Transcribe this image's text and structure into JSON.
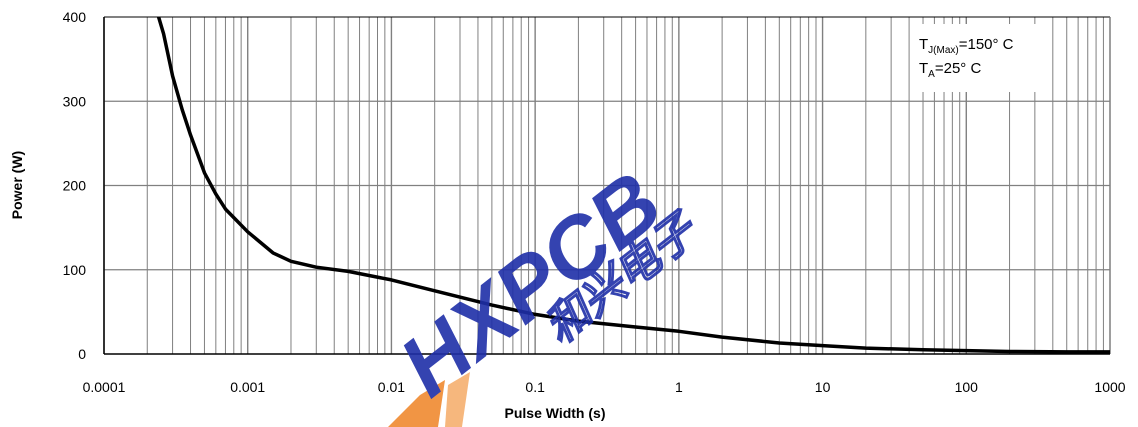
{
  "chart_data": {
    "type": "line",
    "xlabel": "Pulse Width (s)",
    "ylabel": "Power (W)",
    "xscale": "log",
    "xlim": [
      0.0001,
      1000
    ],
    "ylim": [
      0,
      400
    ],
    "x_ticks": [
      "0.0001",
      "0.001",
      "0.01",
      "0.1",
      "1",
      "10",
      "100",
      "1000"
    ],
    "y_ticks": [
      "0",
      "100",
      "200",
      "300",
      "400"
    ],
    "grid": true,
    "series": [
      {
        "x": [
          0.00024,
          0.00026,
          0.0003,
          0.00035,
          0.0004,
          0.0005,
          0.0006,
          0.0007,
          0.001,
          0.0015,
          0.002,
          0.003,
          0.005,
          0.01,
          0.02,
          0.05,
          0.1,
          0.2,
          0.5,
          1,
          2,
          5,
          10,
          20,
          50,
          100,
          200,
          500,
          1000
        ],
        "y": [
          400,
          380,
          330,
          290,
          260,
          215,
          190,
          172,
          145,
          120,
          110,
          103,
          98,
          88,
          75,
          58,
          47,
          39,
          32,
          27,
          20,
          13,
          10,
          7,
          5,
          4,
          3,
          2.5,
          2.5
        ]
      }
    ],
    "annotations": {
      "line1_main": "T",
      "line1_sub": "J(Max)",
      "line1_value": "=150°  C",
      "line2_main": "T",
      "line2_sub": "A",
      "line2_value": "=25°  C"
    }
  },
  "watermark": {
    "logo_text": "HXPCB",
    "cn_text": "和兴电子"
  },
  "colors": {
    "curve": "#000000",
    "grid": "#808080",
    "watermark_blue": "#1f2fa8",
    "watermark_orange": "#f08a30"
  }
}
